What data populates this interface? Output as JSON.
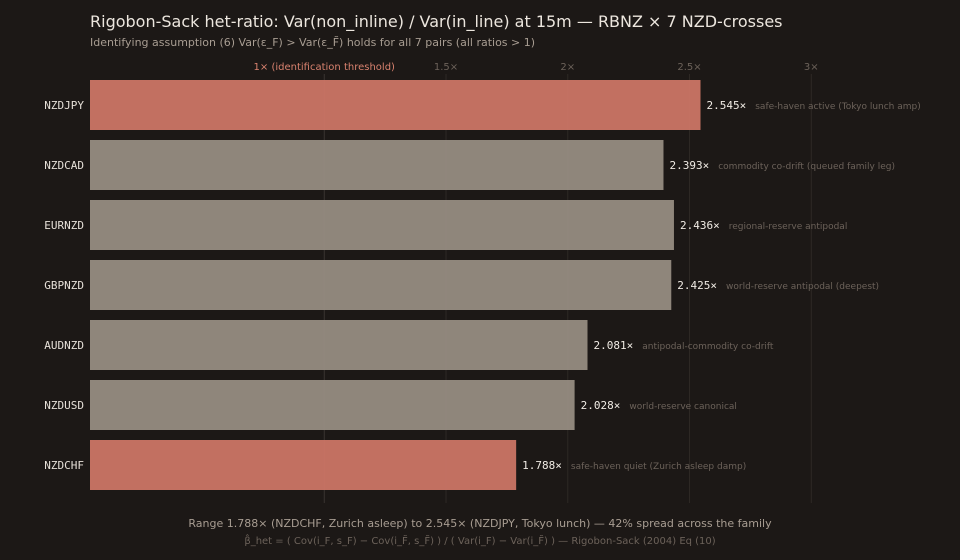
{
  "title": "Rigobon-Sack het-ratio: Var(non_inline) / Var(in_line) at 15m — RBNZ × 7 NZD-crosses",
  "subtitle": "Identifying assumption (6) Var(ε_F) > Var(ε_F̃) holds for all 7 pairs (all ratios > 1)",
  "footer": "Range 1.788× (NZDCHF, Zurich asleep) to 2.545× (NZDJPY, Tokyo lunch) — 42% spread across the family",
  "formula": "β̂_het = ( Cov(i_F, s_F) − Cov(i_F̃, s_F̃) ) / ( Var(i_F) − Var(i_F̃) ) — Rigobon-Sack (2004) Eq (10)",
  "colors": {
    "highlight": "#c87464",
    "normal": "#948a7f",
    "background": "#1c1816",
    "threshold_label": "#d9826f",
    "tick_label": "#6c625a",
    "grid": "#2e2925",
    "pair_label": "#e6e0d8",
    "value_label": "#f0ebe4",
    "annotation": "#6c625a"
  },
  "chart_data": {
    "type": "bar",
    "orientation": "horizontal",
    "title": "Rigobon-Sack het-ratio: Var(non_inline) / Var(in_line) at 15m — RBNZ × 7 NZD-crosses",
    "subtitle": "Identifying assumption (6) Var(ε_F) > Var(ε_F̃) holds for all 7 pairs (all ratios > 1)",
    "xlabel": "",
    "ylabel": "",
    "xlim": [
      0.038,
      3.2
    ],
    "grid": "vertical",
    "legend": "none",
    "ticks": [
      {
        "value": 1.0,
        "label": "1× (identification threshold)",
        "threshold": true
      },
      {
        "value": 1.5,
        "label": "1.5×",
        "threshold": false
      },
      {
        "value": 2.0,
        "label": "2×",
        "threshold": false
      },
      {
        "value": 2.5,
        "label": "2.5×",
        "threshold": false
      },
      {
        "value": 3.0,
        "label": "3×",
        "threshold": false
      }
    ],
    "categories": [
      "NZDJPY",
      "NZDCAD",
      "EURNZD",
      "GBPNZD",
      "AUDNZD",
      "NZDUSD",
      "NZDCHF"
    ],
    "values": [
      2.545,
      2.393,
      2.436,
      2.425,
      2.081,
      2.028,
      1.788
    ],
    "value_labels": [
      "2.545×",
      "2.393×",
      "2.436×",
      "2.425×",
      "2.081×",
      "2.028×",
      "1.788×"
    ],
    "annotations": [
      "safe-haven active (Tokyo lunch amp)",
      "commodity co-drift (queued family leg)",
      "regional-reserve antipodal",
      "world-reserve antipodal (deepest)",
      "antipodal-commodity co-drift",
      "world-reserve canonical",
      "safe-haven quiet (Zurich asleep damp)"
    ],
    "highlighted": [
      true,
      false,
      false,
      false,
      false,
      false,
      true
    ]
  }
}
